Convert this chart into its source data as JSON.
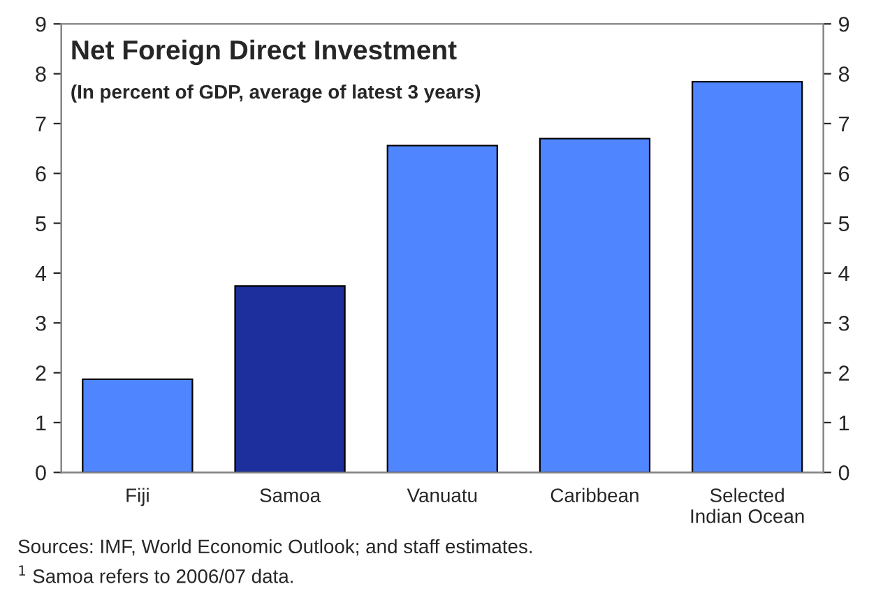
{
  "chart_data": {
    "type": "bar",
    "title": "Net Foreign Direct Investment",
    "subtitle": "(In percent of GDP, average of latest 3 years)",
    "categories": [
      "Fiji",
      "Samoa",
      "Vanuatu",
      "Caribbean",
      "Selected\nIndian Ocean"
    ],
    "values": [
      1.87,
      3.74,
      6.56,
      6.7,
      7.84
    ],
    "colors": [
      "#4f86ff",
      "#1c2f9c",
      "#4f86ff",
      "#4f86ff",
      "#4f86ff"
    ],
    "ylim": [
      0,
      9
    ],
    "yticks": [
      0,
      1,
      2,
      3,
      4,
      5,
      6,
      7,
      8,
      9
    ],
    "y2lim": [
      0,
      9
    ],
    "y2ticks": [
      0,
      1,
      2,
      3,
      4,
      5,
      6,
      7,
      8,
      9
    ],
    "grid": false,
    "annotations": [
      "Sources: IMF, World Economic Outlook; and staff estimates.",
      "$^{1}$ Samoa refers to 2006/07 data."
    ]
  }
}
